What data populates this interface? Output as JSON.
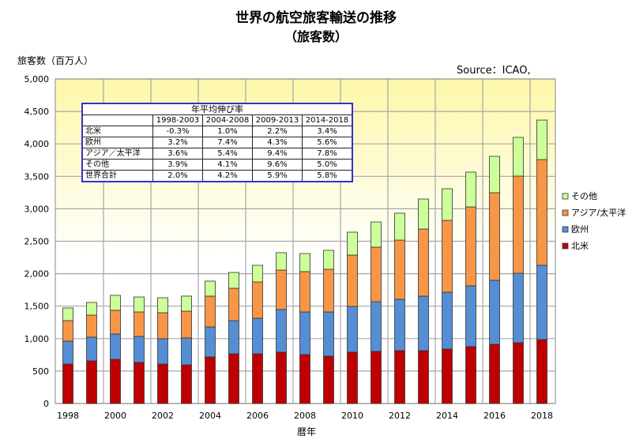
{
  "chart_data": {
    "type": "bar",
    "stacked": true,
    "title": "世界の航空旅客輸送の推移",
    "subtitle": "（旅客数）",
    "ylabel": "旅客数（百万人）",
    "xlabel": "暦年",
    "source": "Source：ICAO,",
    "ylim": [
      0,
      5000
    ],
    "yticks": [
      "0",
      "500",
      "1,000",
      "1,500",
      "2,000",
      "2,500",
      "3,000",
      "3,500",
      "4,000",
      "4,500",
      "5,000"
    ],
    "xticks": [
      "1998",
      "2000",
      "2002",
      "2004",
      "2006",
      "2008",
      "2010",
      "2012",
      "2014",
      "2016",
      "2018"
    ],
    "categories": [
      1998,
      1999,
      2000,
      2001,
      2002,
      2003,
      2004,
      2005,
      2006,
      2007,
      2008,
      2009,
      2010,
      2011,
      2012,
      2013,
      2014,
      2015,
      2016,
      2017,
      2018
    ],
    "series": [
      {
        "name": "北米",
        "color": "#c00000",
        "values": [
          608,
          657,
          681,
          633,
          608,
          596,
          718,
          766,
          766,
          791,
          754,
          730,
          791,
          803,
          815,
          815,
          839,
          876,
          912,
          937,
          985
        ]
      },
      {
        "name": "欧州",
        "color": "#558ed5",
        "values": [
          353,
          365,
          390,
          401,
          390,
          414,
          462,
          511,
          548,
          657,
          657,
          681,
          705,
          766,
          791,
          839,
          876,
          937,
          986,
          1070,
          1144
        ]
      },
      {
        "name": "アジア/太平洋",
        "color": "#f79646",
        "values": [
          316,
          340,
          365,
          377,
          401,
          413,
          475,
          499,
          559,
          608,
          621,
          657,
          791,
          840,
          912,
          1034,
          1107,
          1216,
          1350,
          1497,
          1630
        ]
      },
      {
        "name": "その他",
        "color": "#ccff99",
        "values": [
          195,
          195,
          231,
          231,
          231,
          232,
          231,
          243,
          256,
          268,
          279,
          292,
          353,
          389,
          414,
          463,
          487,
          536,
          560,
          596,
          608
        ]
      }
    ],
    "legend_position": "right",
    "grid": true,
    "table": {
      "title": "年平均伸び率",
      "columns": [
        "1998-2003",
        "2004-2008",
        "2009-2013",
        "2014-2018"
      ],
      "rows": [
        {
          "label": "北米",
          "values": [
            "-0.3%",
            "1.0%",
            "2.2%",
            "3.4%"
          ]
        },
        {
          "label": "欧州",
          "values": [
            "3.2%",
            "7.4%",
            "4.3%",
            "5.6%"
          ]
        },
        {
          "label": "アジア／太平洋",
          "values": [
            "3.6%",
            "5.4%",
            "9.4%",
            "7.8%"
          ]
        },
        {
          "label": "その他",
          "values": [
            "3.9%",
            "4.1%",
            "9.6%",
            "5.0%"
          ]
        },
        {
          "label": "世界合計",
          "values": [
            "2.0%",
            "4.2%",
            "5.9%",
            "5.8%"
          ]
        }
      ]
    }
  }
}
